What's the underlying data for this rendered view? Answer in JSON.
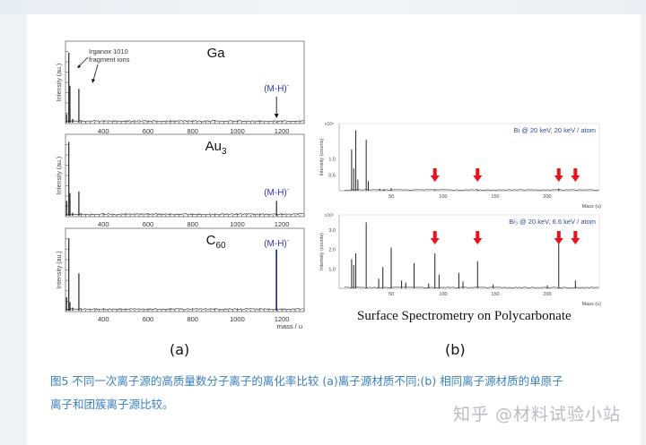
{
  "figure": {
    "panel_a_label": "(a)",
    "panel_b_label": "(b)",
    "panel_b_title": "Surface Spectrometry on Polycarbonate",
    "caption_line1": "图5   不同一次离子源的高质量数分子离子的离化率比较 (a)离子源材质不同;(b) 相同离子源材质的单原子",
    "caption_line2": "离子和团簇离子源比较。",
    "watermark": "知乎 @材料试验小站",
    "colors": {
      "caption": "#3a7fc1",
      "annotation_blue": "#2b35b8",
      "arrow_red": "#e8141b",
      "trace": "#111111"
    }
  },
  "chart_data": [
    {
      "type": "bar",
      "title": "Ga",
      "ylabel": "Intensity (au.)",
      "xlabel": "",
      "xticks": [
        "400",
        "600",
        "800",
        "1000",
        "1200"
      ],
      "xlim": [
        230,
        1300
      ],
      "annotations": [
        "Irganox 1010",
        "fragment ions",
        "(M-H)⁻"
      ],
      "peaks": {
        "x": [
          235,
          245,
          250,
          262,
          290,
          1176
        ],
        "y": [
          0.12,
          0.9,
          0.48,
          0.06,
          0.44,
          0.02
        ]
      }
    },
    {
      "type": "bar",
      "title": "Au₃",
      "ylabel": "Intensity (au.)",
      "xlabel": "",
      "xticks": [
        "400",
        "600",
        "800",
        "1000",
        "1200"
      ],
      "xlim": [
        230,
        1300
      ],
      "annotations": [
        "(M-H)⁻"
      ],
      "peaks": {
        "x": [
          235,
          245,
          250,
          262,
          290,
          1176
        ],
        "y": [
          0.2,
          0.95,
          0.3,
          0.05,
          0.32,
          0.2
        ]
      }
    },
    {
      "type": "bar",
      "title": "C₆₀",
      "ylabel": "Intensity (au.)",
      "xlabel": "mass / u",
      "xticks": [
        "400",
        "600",
        "800",
        "1000",
        "1200"
      ],
      "xlim": [
        230,
        1300
      ],
      "annotations": [
        "(M-H)⁻"
      ],
      "peaks": {
        "x": [
          235,
          245,
          250,
          262,
          290,
          1176
        ],
        "y": [
          0.18,
          0.92,
          0.12,
          0.05,
          0.48,
          0.78
        ]
      }
    },
    {
      "type": "bar",
      "title": "Bi @ 20 keV, 20 keV / atom",
      "ylabel": "Intensity (counts)",
      "xlabel": "Mass (u)",
      "y_multiplier": "x10⁵",
      "yticks": [
        "0.5",
        "1.0"
      ],
      "xticks": [
        "50",
        "100",
        "150",
        "200"
      ],
      "xlim": [
        0,
        250
      ],
      "red_arrows_at": [
        92,
        133,
        211,
        227
      ],
      "peaks": {
        "x": [
          12,
          14,
          16,
          18,
          26,
          28,
          39,
          43,
          50,
          92,
          133,
          211
        ],
        "y": [
          1.3,
          0.7,
          1.9,
          0.35,
          1.6,
          0.3,
          0.06,
          0.05,
          0.08,
          0.04,
          0.03,
          0.07
        ]
      }
    },
    {
      "type": "bar",
      "title": "Bi₃ @ 20 keV, 6.6 keV / atom",
      "ylabel": "Intensity (counts)",
      "xlabel": "Mass (u)",
      "y_multiplier": "x10³",
      "yticks": [
        "1.0",
        "2.0",
        "3.0"
      ],
      "xticks": [
        "50",
        "100",
        "150",
        "200"
      ],
      "xlim": [
        0,
        250
      ],
      "red_arrows_at": [
        92,
        133,
        211,
        227
      ],
      "peaks": {
        "x": [
          12,
          14,
          16,
          26,
          38,
          42,
          50,
          60,
          64,
          72,
          86,
          92,
          96,
          115,
          119,
          133,
          148,
          200,
          211,
          227
        ],
        "y": [
          1.5,
          1.2,
          1.8,
          3.4,
          0.5,
          1.1,
          2.1,
          0.4,
          0.3,
          1.3,
          0.25,
          1.8,
          0.7,
          0.8,
          0.35,
          1.4,
          0.2,
          0.15,
          2.3,
          0.4
        ]
      }
    }
  ]
}
